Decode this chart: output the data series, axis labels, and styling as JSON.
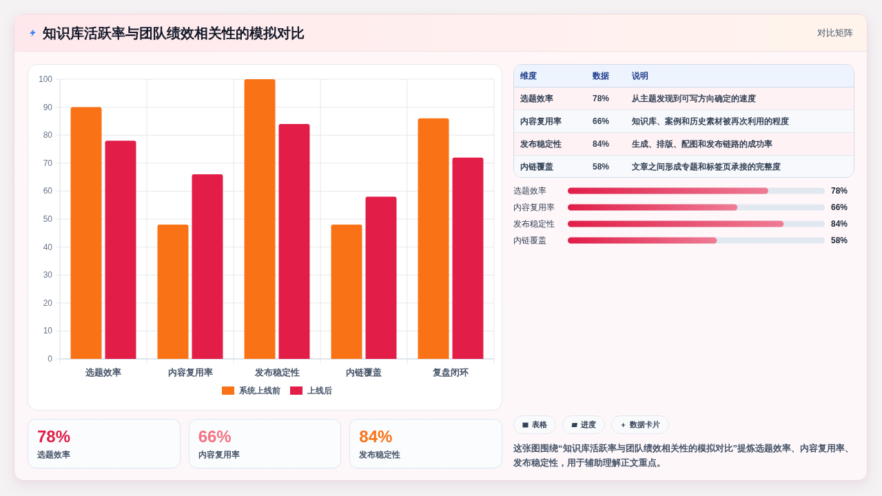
{
  "chart_data": [
    {
      "type": "bar",
      "title": "知识库活跃率与团队绩效相关性的模拟对比",
      "categories": [
        "选题效率",
        "内容复用率",
        "发布稳定性",
        "内链覆盖",
        "复盘闭环"
      ],
      "series": [
        {
          "name": "系统上线前",
          "color": "#f97316",
          "values": [
            90,
            48,
            100,
            48,
            86
          ]
        },
        {
          "name": "上线后",
          "color": "#e11d48",
          "values": [
            78,
            66,
            84,
            58,
            72
          ]
        }
      ],
      "ylim": [
        0,
        100
      ],
      "yticks": [
        0,
        10,
        20,
        30,
        40,
        50,
        60,
        70,
        80,
        90,
        100
      ],
      "grid": true,
      "legend": "bottom"
    },
    {
      "type": "other",
      "title": "对比矩阵",
      "categories": [
        "选题效率",
        "内容复用率",
        "发布稳定性",
        "内链覆盖"
      ],
      "value_labels": [
        "78%",
        "66%",
        "84%",
        "58%"
      ],
      "annotations": [
        "维度",
        "数据",
        "说明",
        "从主题发现到可写方向确定的速度",
        "知识库、案例和历史素材被再次利用的程度",
        "生成、排版、配图和发布链路的成功率",
        "文章之间形成专题和标签页承接的完整度"
      ]
    },
    {
      "type": "bar",
      "orientation": "horizontal",
      "categories": [
        "选题效率",
        "内容复用率",
        "发布稳定性",
        "内链覆盖"
      ],
      "values": [
        78,
        66,
        84,
        58
      ],
      "value_labels": [
        "78%",
        "66%",
        "84%",
        "58%"
      ],
      "color": "#e11d48",
      "xlim": [
        0,
        100
      ],
      "tick_labels": "y"
    },
    {
      "type": "other",
      "categories": [
        "选题效率",
        "内容复用率",
        "发布稳定性"
      ],
      "value_labels": [
        "78%",
        "66%",
        "84%"
      ]
    },
    {
      "type": "other",
      "categories": [
        "表格",
        "进度",
        "数据卡片"
      ],
      "annotations": [
        "这张图围绕“知识库活跃率与团队绩效相关性的模拟对比”提炼选题效率、内容复用率、发布稳定性，用于辅助理解正文重点。"
      ]
    }
  ]
}
